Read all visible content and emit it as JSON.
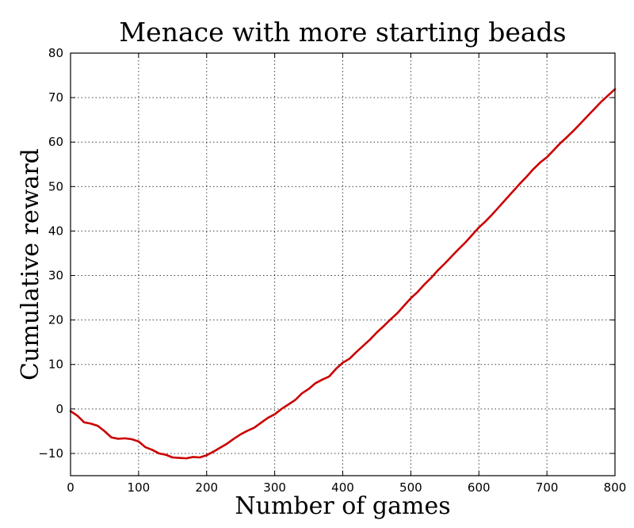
{
  "chart_data": {
    "type": "line",
    "title": "Menace with more starting beads",
    "xlabel": "Number of games",
    "ylabel": "Cumulative reward",
    "xlim": [
      0,
      800
    ],
    "ylim": [
      -15,
      80
    ],
    "xticks": [
      0,
      100,
      200,
      300,
      400,
      500,
      600,
      700,
      800
    ],
    "yticks": [
      -10,
      0,
      10,
      20,
      30,
      40,
      50,
      60,
      70,
      80
    ],
    "xtick_labels": [
      "0",
      "100",
      "200",
      "300",
      "400",
      "500",
      "600",
      "700",
      "800"
    ],
    "ytick_labels": [
      "−10",
      "0",
      "10",
      "20",
      "30",
      "40",
      "50",
      "60",
      "70",
      "80"
    ],
    "grid": true,
    "series": [
      {
        "color": "#cc0000",
        "x": [
          0,
          10,
          20,
          30,
          40,
          50,
          60,
          70,
          80,
          90,
          100,
          110,
          120,
          130,
          140,
          150,
          160,
          170,
          180,
          190,
          200,
          210,
          220,
          230,
          240,
          250,
          260,
          270,
          280,
          290,
          300,
          310,
          320,
          330,
          340,
          350,
          360,
          370,
          380,
          390,
          400,
          410,
          420,
          430,
          440,
          450,
          460,
          470,
          480,
          490,
          500,
          510,
          520,
          530,
          540,
          550,
          560,
          570,
          580,
          590,
          600,
          610,
          620,
          630,
          640,
          650,
          660,
          670,
          680,
          690,
          700,
          710,
          720,
          730,
          740,
          750,
          760,
          770,
          780,
          790,
          800
        ],
        "y": [
          -0.5,
          -1.5,
          -3.0,
          -3.3,
          -3.8,
          -5.0,
          -6.4,
          -6.7,
          -6.6,
          -6.8,
          -7.3,
          -8.6,
          -9.2,
          -10.0,
          -10.3,
          -10.9,
          -11.0,
          -11.1,
          -10.8,
          -10.9,
          -10.4,
          -9.6,
          -8.7,
          -7.8,
          -6.7,
          -5.7,
          -4.9,
          -4.2,
          -3.1,
          -2.0,
          -1.2,
          0.0,
          1.0,
          2.0,
          3.5,
          4.5,
          5.8,
          6.6,
          7.3,
          9.0,
          10.4,
          11.3,
          12.8,
          14.2,
          15.6,
          17.2,
          18.6,
          20.1,
          21.5,
          23.2,
          24.9,
          26.3,
          28.0,
          29.5,
          31.2,
          32.7,
          34.3,
          35.9,
          37.4,
          39.1,
          40.8,
          42.2,
          43.8,
          45.5,
          47.2,
          48.9,
          50.6,
          52.2,
          53.9,
          55.4,
          56.6,
          58.2,
          59.8,
          61.2,
          62.7,
          64.3,
          65.9,
          67.5,
          69.1,
          70.5,
          71.9
        ]
      }
    ]
  }
}
